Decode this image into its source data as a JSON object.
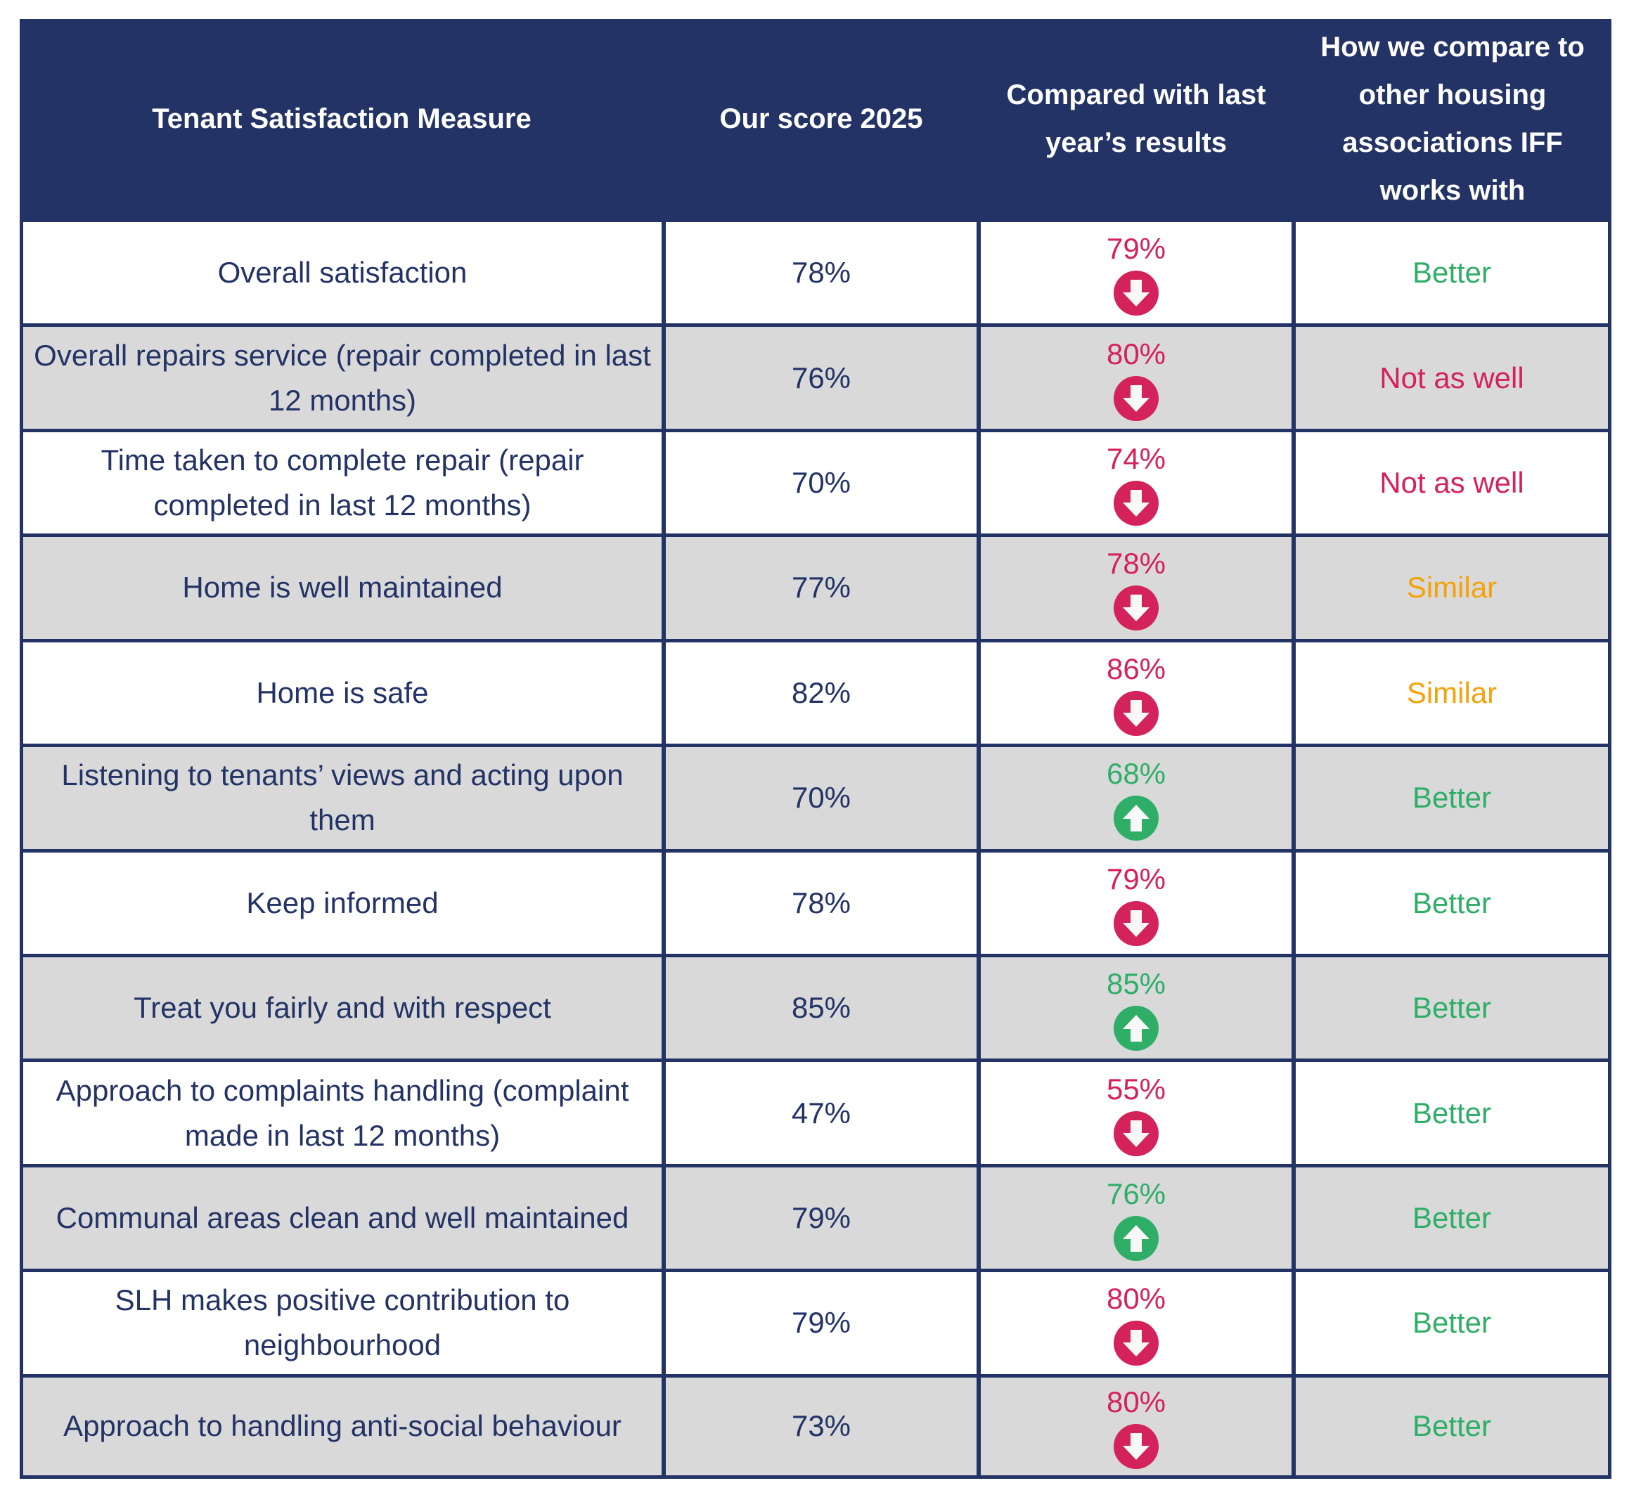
{
  "colors": {
    "header_bg": "#233366",
    "text": "#233366",
    "down": "#d4225a",
    "up": "#2fae68",
    "better": "#2fae68",
    "not_as_well": "#d4225a",
    "similar": "#f5a20a",
    "row_grey": "#d9d9d9"
  },
  "header": {
    "measure": "Tenant Satisfaction Measure",
    "score": "Our score 2025",
    "last_year": "Compared with last year’s results",
    "compare": "How we compare to other housing associations IFF works with"
  },
  "rows": [
    {
      "measure": "Overall satisfaction",
      "score": "78%",
      "last_year": "79%",
      "trend": "down",
      "compare": "Better",
      "compare_status": "better"
    },
    {
      "measure": "Overall repairs service (repair completed in last 12 months)",
      "score": "76%",
      "last_year": "80%",
      "trend": "down",
      "compare": "Not as well",
      "compare_status": "not_as_well"
    },
    {
      "measure": "Time taken to complete repair (repair completed in last 12 months)",
      "score": "70%",
      "last_year": "74%",
      "trend": "down",
      "compare": "Not as well",
      "compare_status": "not_as_well"
    },
    {
      "measure": "Home is well maintained",
      "score": "77%",
      "last_year": "78%",
      "trend": "down",
      "compare": "Similar",
      "compare_status": "similar"
    },
    {
      "measure": "Home is safe",
      "score": "82%",
      "last_year": "86%",
      "trend": "down",
      "compare": "Similar",
      "compare_status": "similar"
    },
    {
      "measure": "Listening to tenants’ views and acting upon them",
      "score": "70%",
      "last_year": "68%",
      "trend": "up",
      "compare": "Better",
      "compare_status": "better"
    },
    {
      "measure": "Keep informed",
      "score": "78%",
      "last_year": "79%",
      "trend": "down",
      "compare": "Better",
      "compare_status": "better"
    },
    {
      "measure": "Treat you fairly and with respect",
      "score": "85%",
      "last_year": "85%",
      "trend": "up",
      "compare": "Better",
      "compare_status": "better"
    },
    {
      "measure": "Approach to complaints handling (complaint made in last 12 months)",
      "score": "47%",
      "last_year": "55%",
      "trend": "down",
      "compare": "Better",
      "compare_status": "better"
    },
    {
      "measure": "Communal areas clean and well maintained",
      "score": "79%",
      "last_year": "76%",
      "trend": "up",
      "compare": "Better",
      "compare_status": "better"
    },
    {
      "measure": "SLH makes positive contribution to neighbourhood",
      "score": "79%",
      "last_year": "80%",
      "trend": "down",
      "compare": "Better",
      "compare_status": "better"
    },
    {
      "measure": "Approach to handling anti-social behaviour",
      "score": "73%",
      "last_year": "80%",
      "trend": "down",
      "compare": "Better",
      "compare_status": "better"
    }
  ]
}
